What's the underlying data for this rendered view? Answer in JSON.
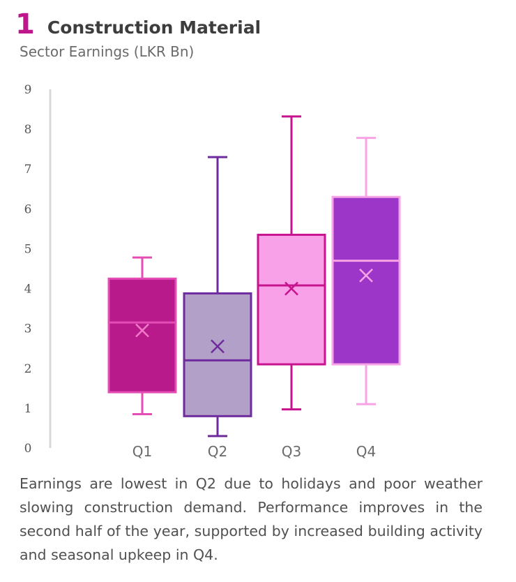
{
  "header": {
    "number": "1",
    "title": "Construction Material"
  },
  "chart_data": {
    "type": "box",
    "title": "Sector Earnings (LKR Bn)",
    "ylim": [
      0,
      9
    ],
    "yticks": [
      0,
      1,
      2,
      3,
      4,
      5,
      6,
      7,
      8,
      9
    ],
    "grid": false,
    "categories": [
      "Q1",
      "Q2",
      "Q3",
      "Q4"
    ],
    "boxes": [
      {
        "category": "Q1",
        "min": 0.85,
        "q1": 1.4,
        "median": 3.15,
        "q3": 4.25,
        "max": 4.78,
        "mean": 2.95,
        "fill": "#b81a8c",
        "stroke": "#e44db4",
        "whisker": "#e44db4",
        "median_color": "#e44db4",
        "mean_color": "#f07ac8"
      },
      {
        "category": "Q2",
        "min": 0.3,
        "q1": 0.8,
        "median": 2.2,
        "q3": 3.88,
        "max": 7.3,
        "mean": 2.55,
        "fill": "#b3a0c8",
        "stroke": "#6e2b9d",
        "whisker": "#6e2b9d",
        "median_color": "#6e2b9d",
        "mean_color": "#6e2b9d"
      },
      {
        "category": "Q3",
        "min": 0.97,
        "q1": 2.1,
        "median": 4.08,
        "q3": 5.35,
        "max": 8.32,
        "mean": 4.0,
        "fill": "#f8a0e8",
        "stroke": "#c8138f",
        "whisker": "#c8138f",
        "median_color": "#c8138f",
        "mean_color": "#c8138f"
      },
      {
        "category": "Q4",
        "min": 1.1,
        "q1": 2.1,
        "median": 4.7,
        "q3": 6.3,
        "max": 7.78,
        "mean": 4.33,
        "fill": "#9b36c9",
        "stroke": "#f7a3e6",
        "whisker": "#f7a3e6",
        "median_color": "#f7a3e6",
        "mean_color": "#f7a3e6"
      }
    ],
    "axis_color": "#d9d9d9",
    "tick_label_color": "#555555",
    "category_label_color": "#6a6a6a"
  },
  "caption": "Earnings are lowest in Q2 due to holidays and poor weather slowing construction demand. Performance improves in the second half of the year, supported by increased building activity and seasonal upkeep in Q4."
}
